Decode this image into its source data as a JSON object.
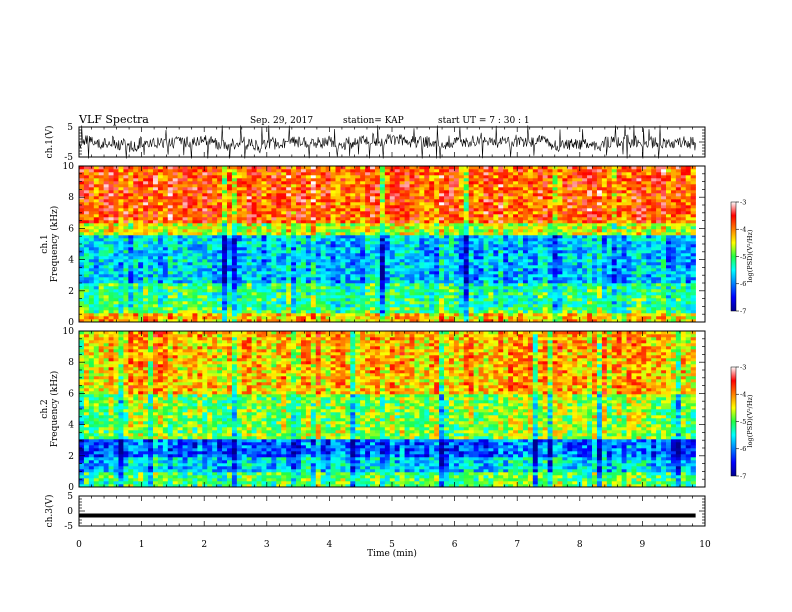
{
  "header": {
    "title": "VLF Spectra",
    "date": "Sep. 29, 2017",
    "station": "station= KAP",
    "start": "start  UT =   7 : 30 : 1"
  },
  "chart_data": [
    {
      "type": "line",
      "panel": "waveform-ch1",
      "ylabel": "ch.1(V)",
      "ylim": [
        -5,
        5
      ],
      "yticks": [
        "5",
        "-5"
      ],
      "xlim": [
        0,
        10
      ],
      "data_end_min": 9.85,
      "line_color": "#000000"
    },
    {
      "type": "heatmap",
      "panel": "spectrogram-ch1",
      "ylabel": [
        "ch.1",
        "Frequency (kHz)"
      ],
      "ylim": [
        0,
        10
      ],
      "yticks": [
        "0",
        "2",
        "4",
        "6",
        "8",
        "10"
      ],
      "xlim": [
        0,
        10
      ],
      "data_end_min": 9.85,
      "bands": [
        {
          "from_khz": 0.0,
          "to_khz": 0.5,
          "log_psd": -4.3
        },
        {
          "from_khz": 0.5,
          "to_khz": 1.0,
          "log_psd": -5.0
        },
        {
          "from_khz": 1.0,
          "to_khz": 2.5,
          "log_psd": -5.2
        },
        {
          "from_khz": 2.5,
          "to_khz": 5.5,
          "log_psd": -5.7
        },
        {
          "from_khz": 5.5,
          "to_khz": 6.3,
          "log_psd": -4.6
        },
        {
          "from_khz": 6.3,
          "to_khz": 10.0,
          "log_psd": -3.8
        }
      ],
      "colorbar": {
        "label": "log(PSD)(V²/Hz)",
        "range": [
          -7,
          -3
        ],
        "ticks": [
          "-3",
          "-4",
          "-5",
          "-6",
          "-7"
        ]
      }
    },
    {
      "type": "heatmap",
      "panel": "spectrogram-ch2",
      "ylabel": [
        "ch.2",
        "Frequency (kHz)"
      ],
      "ylim": [
        0,
        10
      ],
      "yticks": [
        "0",
        "2",
        "4",
        "6",
        "8",
        "10"
      ],
      "xlim": [
        0,
        10
      ],
      "data_end_min": 9.85,
      "bands": [
        {
          "from_khz": 0.0,
          "to_khz": 1.0,
          "log_psd": -5.0
        },
        {
          "from_khz": 1.0,
          "to_khz": 2.0,
          "log_psd": -5.6
        },
        {
          "from_khz": 2.0,
          "to_khz": 3.0,
          "log_psd": -6.1
        },
        {
          "from_khz": 3.0,
          "to_khz": 6.0,
          "log_psd": -4.8
        },
        {
          "from_khz": 6.0,
          "to_khz": 10.0,
          "log_psd": -4.2
        }
      ],
      "colorbar": {
        "label": "log(PSD)(V²/Hz)",
        "range": [
          -7,
          -3
        ],
        "ticks": [
          "-3",
          "-4",
          "-5",
          "-6",
          "-7"
        ]
      }
    },
    {
      "type": "line",
      "panel": "waveform-ch3",
      "ylabel": "ch.3(V)",
      "ylim": [
        -5,
        5
      ],
      "yticks": [
        "5",
        "0",
        "-5"
      ],
      "xlim": [
        0,
        10
      ],
      "data_end_min": 9.85,
      "constant_value": -1.5,
      "line_color": "#000000"
    }
  ],
  "x_axis": {
    "label": "Time (min)",
    "ticks": [
      "0",
      "1",
      "2",
      "3",
      "4",
      "5",
      "6",
      "7",
      "8",
      "9",
      "10"
    ]
  }
}
